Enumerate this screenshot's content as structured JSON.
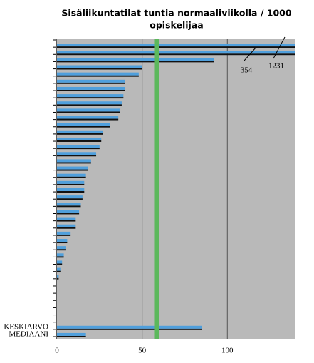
{
  "chart_data": {
    "type": "barh",
    "title": [
      "Sisäliikuntatilat tuntia normaaliviikolla / 1000",
      "opiskelijaa"
    ],
    "categories": [
      null,
      null,
      null,
      null,
      null,
      null,
      null,
      null,
      null,
      null,
      null,
      null,
      null,
      null,
      null,
      null,
      null,
      null,
      null,
      null,
      null,
      null,
      null,
      null,
      null,
      null,
      null,
      null,
      null,
      null,
      null,
      null,
      null,
      null,
      null,
      null,
      null,
      null,
      null,
      "KESKIARVO",
      "MEDIAANI"
    ],
    "values": [
      1231,
      354,
      92,
      50,
      48,
      40,
      40,
      39,
      38,
      37,
      36,
      31,
      27,
      26,
      25,
      23,
      20,
      18,
      17,
      16,
      16,
      15,
      14,
      13,
      11,
      11,
      8,
      6,
      5,
      4,
      3,
      2,
      1,
      null,
      null,
      null,
      null,
      null,
      null,
      85,
      17
    ],
    "value_labels": [
      "1231",
      "354",
      null,
      null,
      null,
      null,
      null,
      null,
      null,
      null,
      null,
      null,
      null,
      null,
      null,
      null,
      null,
      null,
      null,
      null,
      null,
      null,
      null,
      null,
      null,
      null,
      null,
      null,
      null,
      null,
      null,
      null,
      null,
      null,
      null,
      null,
      null,
      null,
      null,
      null,
      null
    ],
    "color": "#4f9fdc",
    "xlim": [
      0,
      140
    ],
    "xticks": [
      0,
      50,
      100
    ],
    "grid": true,
    "reference_line": {
      "value": 58.5,
      "color": "#5cb85c"
    }
  }
}
